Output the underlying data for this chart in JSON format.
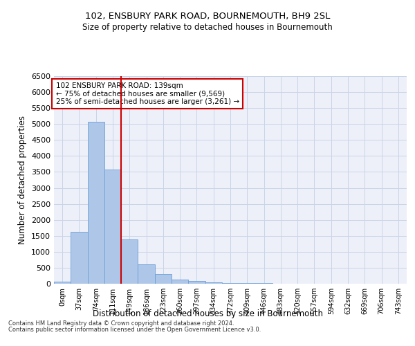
{
  "title1": "102, ENSBURY PARK ROAD, BOURNEMOUTH, BH9 2SL",
  "title2": "Size of property relative to detached houses in Bournemouth",
  "xlabel": "Distribution of detached houses by size in Bournemouth",
  "ylabel": "Number of detached properties",
  "categories": [
    "0sqm",
    "37sqm",
    "74sqm",
    "111sqm",
    "149sqm",
    "186sqm",
    "223sqm",
    "260sqm",
    "297sqm",
    "334sqm",
    "372sqm",
    "409sqm",
    "446sqm",
    "483sqm",
    "520sqm",
    "557sqm",
    "594sqm",
    "632sqm",
    "669sqm",
    "706sqm",
    "743sqm"
  ],
  "values": [
    75,
    1620,
    5080,
    3580,
    1390,
    610,
    300,
    140,
    90,
    45,
    30,
    20,
    15,
    10,
    5,
    5,
    3,
    3,
    2,
    2,
    2
  ],
  "bar_color": "#aec6e8",
  "bar_edge_color": "#6a9fd8",
  "vline_x": 3.5,
  "annotation_title": "102 ENSBURY PARK ROAD: 139sqm",
  "annotation_line1": "← 75% of detached houses are smaller (9,569)",
  "annotation_line2": "25% of semi-detached houses are larger (3,261) →",
  "annotation_box_color": "#ffffff",
  "annotation_box_edge": "#cc0000",
  "vline_color": "#cc0000",
  "grid_color": "#c8d4e8",
  "background_color": "#edf0f8",
  "ylim": [
    0,
    6500
  ],
  "yticks": [
    0,
    500,
    1000,
    1500,
    2000,
    2500,
    3000,
    3500,
    4000,
    4500,
    5000,
    5500,
    6000,
    6500
  ],
  "footer1": "Contains HM Land Registry data © Crown copyright and database right 2024.",
  "footer2": "Contains public sector information licensed under the Open Government Licence v3.0."
}
